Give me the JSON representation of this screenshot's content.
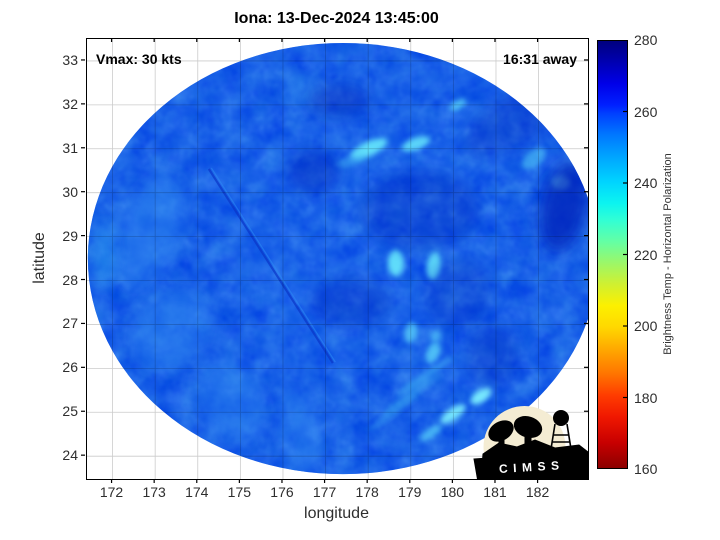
{
  "figure": {
    "logo_text": "CIMSS"
  },
  "chart_data": {
    "type": "heatmap",
    "title": "Iona: 13-Dec-2024 13:45:00",
    "xlabel": "longitude",
    "ylabel": "latitude",
    "annotations": {
      "vmax": "Vmax: 30 kts",
      "eta": "16:31 away"
    },
    "xlim": [
      171.4,
      183.16
    ],
    "ylim": [
      23.48,
      33.5
    ],
    "xticks": [
      172,
      173,
      174,
      175,
      176,
      177,
      178,
      179,
      180,
      181,
      182
    ],
    "yticks": [
      24,
      25,
      26,
      27,
      28,
      29,
      30,
      31,
      32,
      33
    ],
    "grid": true,
    "colorbar": {
      "label": "Brightness Temp - Horizontal Polarization",
      "min": 160,
      "max": 280,
      "ticks": [
        160,
        180,
        200,
        220,
        240,
        260,
        280
      ],
      "colormap": "jet-reversed",
      "gradient_stops": [
        [
          0.0,
          "#00007f"
        ],
        [
          0.04,
          "#0000a8"
        ],
        [
          0.1,
          "#0000e8"
        ],
        [
          0.15,
          "#0020ff"
        ],
        [
          0.17,
          "#0040ff"
        ],
        [
          0.22,
          "#0078ff"
        ],
        [
          0.28,
          "#00acff"
        ],
        [
          0.33,
          "#00d4ff"
        ],
        [
          0.38,
          "#0cf4f0"
        ],
        [
          0.42,
          "#32ffd4"
        ],
        [
          0.47,
          "#64ffa4"
        ],
        [
          0.52,
          "#9cf768"
        ],
        [
          0.57,
          "#d0f030"
        ],
        [
          0.62,
          "#fcf000"
        ],
        [
          0.67,
          "#ffd800"
        ],
        [
          0.72,
          "#ffaa00"
        ],
        [
          0.78,
          "#ff7400"
        ],
        [
          0.83,
          "#ff3c00"
        ],
        [
          0.88,
          "#f01800"
        ],
        [
          0.94,
          "#c80000"
        ],
        [
          1.0,
          "#8c0000"
        ]
      ]
    },
    "swath": {
      "center_lon": 177.41,
      "center_lat": 28.5,
      "rx_deg": 5.99,
      "ry_deg": 4.91,
      "base_color": "#0847e6",
      "base_bt_k": 258
    },
    "feature_colors": {
      "bright_cell": "#66e8fc",
      "light_band": "#2e86f0",
      "dark_patch": "#0222b8"
    },
    "features": [
      {
        "name": "convective-cell",
        "lon": 178.02,
        "lat": 31.0,
        "w": 0.95,
        "h": 0.33,
        "rot": -25,
        "color": "#66e8fc",
        "op": 0.9,
        "soft": false
      },
      {
        "name": "convective-cell",
        "lon": 179.12,
        "lat": 31.11,
        "w": 0.7,
        "h": 0.28,
        "rot": -20,
        "color": "#66e8fc",
        "op": 0.85,
        "soft": false
      },
      {
        "name": "convective-cell",
        "lon": 177.6,
        "lat": 30.72,
        "w": 0.7,
        "h": 0.24,
        "rot": -15,
        "color": "#4cc2f6",
        "op": 0.5,
        "soft": false
      },
      {
        "name": "convective-cell",
        "lon": 180.11,
        "lat": 32.0,
        "w": 0.42,
        "h": 0.2,
        "rot": -30,
        "color": "#66e8fc",
        "op": 0.7,
        "soft": false
      },
      {
        "name": "convective-cell",
        "lon": 178.65,
        "lat": 28.4,
        "w": 0.38,
        "h": 0.6,
        "rot": 0,
        "color": "#66e8fc",
        "op": 0.9,
        "soft": false
      },
      {
        "name": "convective-cell",
        "lon": 179.54,
        "lat": 28.33,
        "w": 0.33,
        "h": 0.64,
        "rot": 8,
        "color": "#66e8fc",
        "op": 0.9,
        "soft": false
      },
      {
        "name": "convective-cell",
        "lon": 179.59,
        "lat": 26.74,
        "w": 0.26,
        "h": 0.26,
        "rot": 0,
        "color": "#5cd8fa",
        "op": 0.6,
        "soft": false
      },
      {
        "name": "convective-cell",
        "lon": 182.53,
        "lat": 30.22,
        "w": 0.42,
        "h": 0.32,
        "rot": 0,
        "color": "#7df0ff",
        "op": 0.95,
        "soft": false
      },
      {
        "name": "convective-cell",
        "lon": 181.89,
        "lat": 30.77,
        "w": 0.7,
        "h": 0.36,
        "rot": -40,
        "color": "#55d0f8",
        "op": 0.55,
        "soft": false
      },
      {
        "name": "convective-cell",
        "lon": 179.0,
        "lat": 26.81,
        "w": 0.3,
        "h": 0.48,
        "rot": 15,
        "color": "#5cd8fa",
        "op": 0.7,
        "soft": false
      },
      {
        "name": "convective-cell",
        "lon": 179.52,
        "lat": 26.35,
        "w": 0.3,
        "h": 0.52,
        "rot": 20,
        "color": "#5cd8fa",
        "op": 0.75,
        "soft": false
      },
      {
        "name": "convective-cell",
        "lon": 180.65,
        "lat": 25.37,
        "w": 0.56,
        "h": 0.28,
        "rot": -35,
        "color": "#7df0ff",
        "op": 0.95,
        "soft": false
      },
      {
        "name": "convective-cell",
        "lon": 179.99,
        "lat": 24.96,
        "w": 0.7,
        "h": 0.26,
        "rot": -35,
        "color": "#7df0ff",
        "op": 0.9,
        "soft": false
      },
      {
        "name": "convective-cell",
        "lon": 179.47,
        "lat": 24.53,
        "w": 0.6,
        "h": 0.22,
        "rot": -35,
        "color": "#5cd8fa",
        "op": 0.7,
        "soft": false
      },
      {
        "name": "rain-band-streak",
        "lon": 179.3,
        "lat": 25.8,
        "w": 1.6,
        "h": 0.16,
        "rot": -35,
        "color": "#4cc8f6",
        "op": 0.5,
        "soft": false
      },
      {
        "name": "rain-band-streak",
        "lon": 179.0,
        "lat": 25.4,
        "w": 1.7,
        "h": 0.14,
        "rot": -35,
        "color": "#4cc8f6",
        "op": 0.45,
        "soft": false
      },
      {
        "name": "rain-band-streak",
        "lon": 178.6,
        "lat": 25.0,
        "w": 1.5,
        "h": 0.12,
        "rot": -36,
        "color": "#4cc8f6",
        "op": 0.4,
        "soft": false
      },
      {
        "name": "light-band",
        "lon": 172.9,
        "lat": 29.13,
        "w": 1.4,
        "h": 2.7,
        "rot": 20,
        "color": "#2e86f0",
        "op": 0.5,
        "soft": true
      },
      {
        "name": "light-band",
        "lon": 173.37,
        "lat": 26.85,
        "w": 1.6,
        "h": 2.0,
        "rot": 40,
        "color": "#2e86f0",
        "op": 0.5,
        "soft": true
      },
      {
        "name": "light-band",
        "lon": 174.78,
        "lat": 25.26,
        "w": 2.1,
        "h": 1.4,
        "rot": 65,
        "color": "#2e86f0",
        "op": 0.45,
        "soft": true
      },
      {
        "name": "light-band",
        "lon": 176.42,
        "lat": 24.57,
        "w": 2.1,
        "h": 0.9,
        "rot": 80,
        "color": "#2e86f0",
        "op": 0.45,
        "soft": true
      },
      {
        "name": "light-patch",
        "lon": 171.8,
        "lat": 28.6,
        "w": 0.5,
        "h": 1.6,
        "rot": 0,
        "color": "#35b0f0",
        "op": 0.45,
        "soft": true
      },
      {
        "name": "light-patch",
        "lon": 176.4,
        "lat": 32.3,
        "w": 0.8,
        "h": 0.8,
        "rot": 0,
        "color": "#3fa8f0",
        "op": 0.3,
        "soft": true
      },
      {
        "name": "dark-patch",
        "lon": 182.6,
        "lat": 29.7,
        "w": 1.1,
        "h": 2.1,
        "rot": 12,
        "color": "#0222b8",
        "op": 0.75,
        "soft": true
      },
      {
        "name": "dark-patch",
        "lon": 177.3,
        "lat": 32.1,
        "w": 1.4,
        "h": 0.7,
        "rot": 0,
        "color": "#0222b8",
        "op": 0.45,
        "soft": true
      },
      {
        "name": "dark-patch",
        "lon": 176.7,
        "lat": 30.5,
        "w": 1.2,
        "h": 1.0,
        "rot": 0,
        "color": "#0222b8",
        "op": 0.4,
        "soft": true
      },
      {
        "name": "dark-patch",
        "lon": 179.2,
        "lat": 29.6,
        "w": 2.8,
        "h": 1.8,
        "rot": 0,
        "color": "#0222b8",
        "op": 0.3,
        "soft": true
      },
      {
        "name": "dark-patch",
        "lon": 177.6,
        "lat": 27.5,
        "w": 1.9,
        "h": 1.1,
        "rot": 0,
        "color": "#0222b8",
        "op": 0.3,
        "soft": true
      },
      {
        "name": "dark-patch",
        "lon": 180.1,
        "lat": 27.7,
        "w": 1.6,
        "h": 1.6,
        "rot": 0,
        "color": "#0222b8",
        "op": 0.25,
        "soft": true
      },
      {
        "name": "dark-patch",
        "lon": 180.9,
        "lat": 26.3,
        "w": 1.2,
        "h": 1.4,
        "rot": 0,
        "color": "#0222b8",
        "op": 0.3,
        "soft": true
      },
      {
        "name": "dark-edge-band",
        "lon": 181.5,
        "lat": 31.68,
        "w": 2.8,
        "h": 1.1,
        "rot": -30,
        "color": "#0222b8",
        "op": 0.3,
        "soft": true
      }
    ],
    "scan_streak": {
      "from": [
        174.26,
        30.54
      ],
      "to": [
        177.17,
        26.12
      ]
    }
  }
}
